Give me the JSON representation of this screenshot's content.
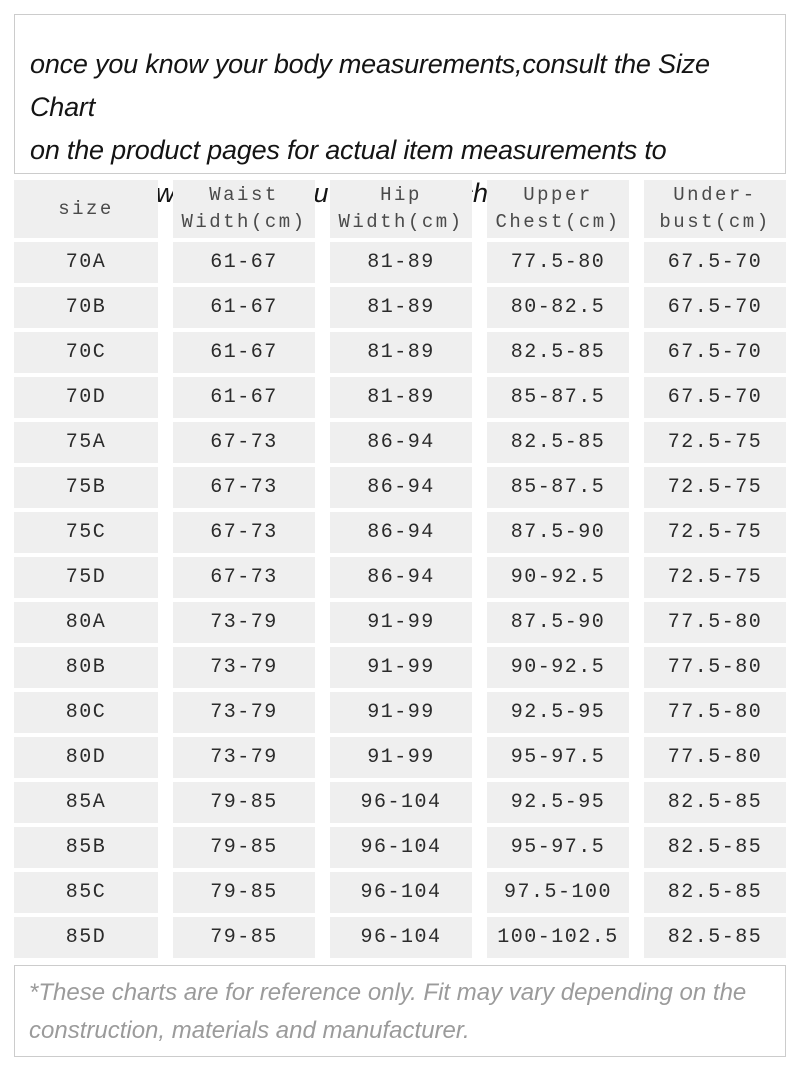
{
  "intro": {
    "text": "once you know your body measurements,consult the Size Chart\non the product pages for actual item measurements to\ndetermine which size you should purchase."
  },
  "table": {
    "columns": [
      "size",
      "Waist\nWidth(cm)",
      "Hip\nWidth(cm)",
      "Upper\nChest(cm)",
      "Under-\nbust(cm)"
    ],
    "rows": [
      [
        "70A",
        "61-67",
        "81-89",
        "77.5-80",
        "67.5-70"
      ],
      [
        "70B",
        "61-67",
        "81-89",
        "80-82.5",
        "67.5-70"
      ],
      [
        "70C",
        "61-67",
        "81-89",
        "82.5-85",
        "67.5-70"
      ],
      [
        "70D",
        "61-67",
        "81-89",
        "85-87.5",
        "67.5-70"
      ],
      [
        "75A",
        "67-73",
        "86-94",
        "82.5-85",
        "72.5-75"
      ],
      [
        "75B",
        "67-73",
        "86-94",
        "85-87.5",
        "72.5-75"
      ],
      [
        "75C",
        "67-73",
        "86-94",
        "87.5-90",
        "72.5-75"
      ],
      [
        "75D",
        "67-73",
        "86-94",
        "90-92.5",
        "72.5-75"
      ],
      [
        "80A",
        "73-79",
        "91-99",
        "87.5-90",
        "77.5-80"
      ],
      [
        "80B",
        "73-79",
        "91-99",
        "90-92.5",
        "77.5-80"
      ],
      [
        "80C",
        "73-79",
        "91-99",
        "92.5-95",
        "77.5-80"
      ],
      [
        "80D",
        "73-79",
        "91-99",
        "95-97.5",
        "77.5-80"
      ],
      [
        "85A",
        "79-85",
        "96-104",
        "92.5-95",
        "82.5-85"
      ],
      [
        "85B",
        "79-85",
        "96-104",
        "95-97.5",
        "82.5-85"
      ],
      [
        "85C",
        "79-85",
        "96-104",
        "97.5-100",
        "82.5-85"
      ],
      [
        "85D",
        "79-85",
        "96-104",
        "100-102.5",
        "82.5-85"
      ]
    ]
  },
  "footer": {
    "text": "*These charts are for reference only. Fit may vary depending on the\nconstruction, materials and manufacturer."
  },
  "colors": {
    "cell_background": "#efefef",
    "header_text": "#4a4a4a",
    "data_text": "#2b2b2b",
    "intro_text": "#141414",
    "footer_text": "#9b9b9b",
    "box_border": "#cccccc"
  }
}
